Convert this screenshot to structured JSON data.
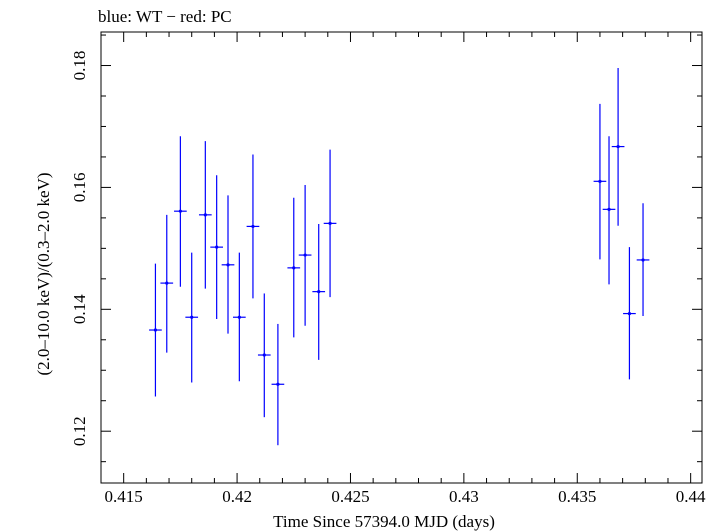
{
  "chart_data": {
    "type": "scatter",
    "title": "blue: WT − red: PC",
    "xlabel": "Time Since 57394.0 MJD (days)",
    "ylabel": "(2.0–10.0 keV)/(0.3–2.0 keV)",
    "xlim": [
      0.414,
      0.4405
    ],
    "ylim": [
      0.1115,
      0.1855
    ],
    "xticks": [
      0.415,
      0.42,
      0.425,
      0.43,
      0.435,
      0.44
    ],
    "xtick_labels": [
      "0.415",
      "0.42",
      "0.425",
      "0.43",
      "0.435",
      "0.44"
    ],
    "yticks": [
      0.12,
      0.14,
      0.16,
      0.18
    ],
    "ytick_labels": [
      "0.12",
      "0.14",
      "0.16",
      "0.18"
    ],
    "grid": false,
    "series": [
      {
        "name": "WT",
        "color": "#0000ff",
        "points": [
          {
            "x": 0.4164,
            "y": 0.1366,
            "xerr": 0.00028,
            "ylo": 0.1257,
            "yhi": 0.1475
          },
          {
            "x": 0.4169,
            "y": 0.1443,
            "xerr": 0.00028,
            "ylo": 0.1329,
            "yhi": 0.1555
          },
          {
            "x": 0.4175,
            "y": 0.1561,
            "xerr": 0.00028,
            "ylo": 0.1437,
            "yhi": 0.1684
          },
          {
            "x": 0.418,
            "y": 0.1387,
            "xerr": 0.00028,
            "ylo": 0.128,
            "yhi": 0.1493
          },
          {
            "x": 0.4186,
            "y": 0.1555,
            "xerr": 0.00028,
            "ylo": 0.1434,
            "yhi": 0.1676
          },
          {
            "x": 0.4191,
            "y": 0.1502,
            "xerr": 0.00028,
            "ylo": 0.1384,
            "yhi": 0.162
          },
          {
            "x": 0.4196,
            "y": 0.1473,
            "xerr": 0.00028,
            "ylo": 0.136,
            "yhi": 0.1587
          },
          {
            "x": 0.4201,
            "y": 0.1387,
            "xerr": 0.00028,
            "ylo": 0.1282,
            "yhi": 0.1493
          },
          {
            "x": 0.4207,
            "y": 0.1536,
            "xerr": 0.00028,
            "ylo": 0.1418,
            "yhi": 0.1654
          },
          {
            "x": 0.4212,
            "y": 0.1325,
            "xerr": 0.00028,
            "ylo": 0.1223,
            "yhi": 0.1426
          },
          {
            "x": 0.4218,
            "y": 0.1277,
            "xerr": 0.00028,
            "ylo": 0.1177,
            "yhi": 0.1376
          },
          {
            "x": 0.4225,
            "y": 0.1468,
            "xerr": 0.00028,
            "ylo": 0.1354,
            "yhi": 0.1583
          },
          {
            "x": 0.423,
            "y": 0.1489,
            "xerr": 0.00028,
            "ylo": 0.1373,
            "yhi": 0.1604
          },
          {
            "x": 0.4236,
            "y": 0.1429,
            "xerr": 0.00028,
            "ylo": 0.1317,
            "yhi": 0.154
          },
          {
            "x": 0.4241,
            "y": 0.1541,
            "xerr": 0.00028,
            "ylo": 0.142,
            "yhi": 0.1662
          },
          {
            "x": 0.436,
            "y": 0.161,
            "xerr": 0.00028,
            "ylo": 0.1482,
            "yhi": 0.1737
          },
          {
            "x": 0.4364,
            "y": 0.1564,
            "xerr": 0.00028,
            "ylo": 0.1441,
            "yhi": 0.1684
          },
          {
            "x": 0.4368,
            "y": 0.1667,
            "xerr": 0.00028,
            "ylo": 0.1537,
            "yhi": 0.1796
          },
          {
            "x": 0.4373,
            "y": 0.1393,
            "xerr": 0.00028,
            "ylo": 0.1285,
            "yhi": 0.1502
          },
          {
            "x": 0.4379,
            "y": 0.1481,
            "xerr": 0.00028,
            "ylo": 0.1389,
            "yhi": 0.1574
          }
        ]
      }
    ]
  }
}
